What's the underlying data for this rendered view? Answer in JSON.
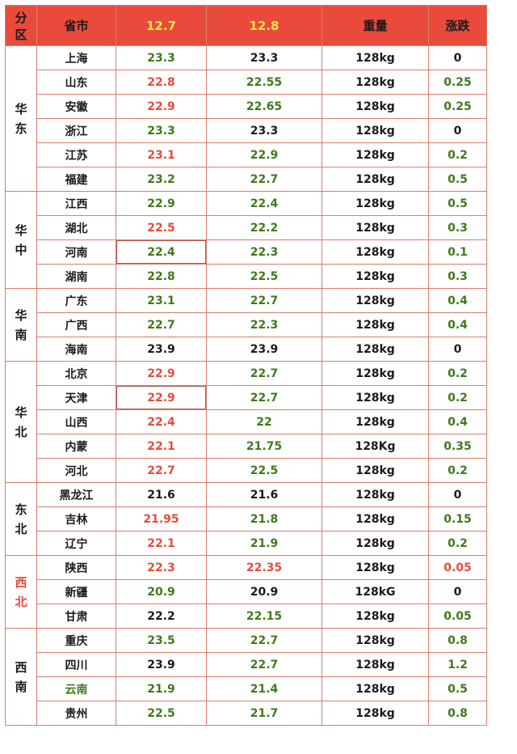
{
  "colors": {
    "header_bg": "#e84b3c",
    "date_header": "#f7e34a",
    "green": "#3e7a1c",
    "red": "#e84b3c",
    "black": "#1a1a1a",
    "grid": "#d97d6c"
  },
  "headers": {
    "region": "分区",
    "province": "省市",
    "date1": "12.7",
    "date2": "12.8",
    "weight": "重量",
    "change": "涨跌"
  },
  "regions": [
    {
      "name": "华东",
      "color": "black",
      "rows": [
        {
          "province": "上海",
          "p_color": "black",
          "v1": "23.3",
          "c1": "green",
          "v2": "23.3",
          "c2": "black",
          "weight": "128kg",
          "change": "0",
          "cc": "black"
        },
        {
          "province": "山东",
          "p_color": "black",
          "v1": "22.8",
          "c1": "red",
          "v2": "22.55",
          "c2": "green",
          "weight": "128kg",
          "change": "0.25",
          "cc": "green"
        },
        {
          "province": "安徽",
          "p_color": "black",
          "v1": "22.9",
          "c1": "red",
          "v2": "22.65",
          "c2": "green",
          "weight": "128kg",
          "change": "0.25",
          "cc": "green"
        },
        {
          "province": "浙江",
          "p_color": "black",
          "v1": "23.3",
          "c1": "green",
          "v2": "23.3",
          "c2": "black",
          "weight": "128kg",
          "change": "0",
          "cc": "black"
        },
        {
          "province": "江苏",
          "p_color": "black",
          "v1": "23.1",
          "c1": "red",
          "v2": "22.9",
          "c2": "green",
          "weight": "128kg",
          "change": "0.2",
          "cc": "green"
        },
        {
          "province": "福建",
          "p_color": "black",
          "v1": "23.2",
          "c1": "green",
          "v2": "22.7",
          "c2": "green",
          "weight": "128kg",
          "change": "0.5",
          "cc": "green"
        }
      ]
    },
    {
      "name": "华中",
      "color": "black",
      "rows": [
        {
          "province": "江西",
          "p_color": "black",
          "v1": "22.9",
          "c1": "green",
          "v2": "22.4",
          "c2": "green",
          "weight": "128kg",
          "change": "0.5",
          "cc": "green"
        },
        {
          "province": "湖北",
          "p_color": "black",
          "v1": "22.5",
          "c1": "red",
          "v2": "22.2",
          "c2": "green",
          "weight": "128kg",
          "change": "0.3",
          "cc": "green"
        },
        {
          "province": "河南",
          "p_color": "black",
          "v1": "22.4",
          "c1": "green",
          "boxed": true,
          "v2": "22.3",
          "c2": "green",
          "weight": "128kg",
          "change": "0.1",
          "cc": "green"
        },
        {
          "province": "湖南",
          "p_color": "black",
          "v1": "22.8",
          "c1": "green",
          "v2": "22.5",
          "c2": "green",
          "weight": "128kg",
          "change": "0.3",
          "cc": "green"
        }
      ]
    },
    {
      "name": "华南",
      "color": "black",
      "rows": [
        {
          "province": "广东",
          "p_color": "black",
          "v1": "23.1",
          "c1": "green",
          "v2": "22.7",
          "c2": "green",
          "weight": "128kg",
          "change": "0.4",
          "cc": "green"
        },
        {
          "province": "广西",
          "p_color": "black",
          "v1": "22.7",
          "c1": "green",
          "v2": "22.3",
          "c2": "green",
          "weight": "128kg",
          "change": "0.4",
          "cc": "green"
        },
        {
          "province": "海南",
          "p_color": "black",
          "v1": "23.9",
          "c1": "black",
          "v2": "23.9",
          "c2": "black",
          "weight": "128kg",
          "change": "0",
          "cc": "black"
        }
      ]
    },
    {
      "name": "华北",
      "color": "black",
      "rows": [
        {
          "province": "北京",
          "p_color": "black",
          "v1": "22.9",
          "c1": "red",
          "v2": "22.7",
          "c2": "green",
          "weight": "128kg",
          "change": "0.2",
          "cc": "green"
        },
        {
          "province": "天津",
          "p_color": "black",
          "v1": "22.9",
          "c1": "red",
          "boxed": true,
          "v2": "22.7",
          "c2": "green",
          "weight": "128kg",
          "change": "0.2",
          "cc": "green"
        },
        {
          "province": "山西",
          "p_color": "black",
          "v1": "22.4",
          "c1": "red",
          "v2": "22",
          "c2": "green",
          "weight": "128kg",
          "change": "0.4",
          "cc": "green"
        },
        {
          "province": "内蒙",
          "p_color": "black",
          "v1": "22.1",
          "c1": "red",
          "v2": "21.75",
          "c2": "green",
          "weight": "128Kg",
          "change": "0.35",
          "cc": "green"
        },
        {
          "province": "河北",
          "p_color": "black",
          "v1": "22.7",
          "c1": "red",
          "v2": "22.5",
          "c2": "green",
          "weight": "128kg",
          "change": "0.2",
          "cc": "green"
        }
      ]
    },
    {
      "name": "东北",
      "color": "black",
      "rows": [
        {
          "province": "黑龙江",
          "p_color": "black",
          "v1": "21.6",
          "c1": "black",
          "v2": "21.6",
          "c2": "black",
          "weight": "128kg",
          "change": "0",
          "cc": "black"
        },
        {
          "province": "吉林",
          "p_color": "black",
          "v1": "21.95",
          "c1": "red",
          "v2": "21.8",
          "c2": "green",
          "weight": "128kg",
          "change": "0.15",
          "cc": "green"
        },
        {
          "province": "辽宁",
          "p_color": "black",
          "v1": "22.1",
          "c1": "red",
          "v2": "21.9",
          "c2": "green",
          "weight": "128kg",
          "change": "0.2",
          "cc": "green"
        }
      ]
    },
    {
      "name": "西北",
      "color": "red",
      "rows": [
        {
          "province": "陕西",
          "p_color": "black",
          "v1": "22.3",
          "c1": "red",
          "v2": "22.35",
          "c2": "red",
          "weight": "128kg",
          "change": "0.05",
          "cc": "red"
        },
        {
          "province": "新疆",
          "p_color": "black",
          "v1": "20.9",
          "c1": "green",
          "v2": "20.9",
          "c2": "black",
          "weight": "128kG",
          "change": "0",
          "cc": "black"
        },
        {
          "province": "甘肃",
          "p_color": "black",
          "v1": "22.2",
          "c1": "black",
          "v2": "22.15",
          "c2": "green",
          "weight": "128kg",
          "change": "0.05",
          "cc": "green"
        }
      ]
    },
    {
      "name": "西南",
      "color": "black",
      "rows": [
        {
          "province": "重庆",
          "p_color": "black",
          "v1": "23.5",
          "c1": "green",
          "v2": "22.7",
          "c2": "green",
          "weight": "128kg",
          "change": "0.8",
          "cc": "green"
        },
        {
          "province": "四川",
          "p_color": "black",
          "v1": "23.9",
          "c1": "black",
          "v2": "22.7",
          "c2": "green",
          "weight": "128kg",
          "change": "1.2",
          "cc": "green"
        },
        {
          "province": "云南",
          "p_color": "green",
          "v1": "21.9",
          "c1": "green",
          "v2": "21.4",
          "c2": "green",
          "weight": "128kg",
          "change": "0.5",
          "cc": "green"
        },
        {
          "province": "贵州",
          "p_color": "black",
          "v1": "22.5",
          "c1": "green",
          "v2": "21.7",
          "c2": "green",
          "weight": "128kg",
          "change": "0.8",
          "cc": "green"
        }
      ]
    }
  ]
}
